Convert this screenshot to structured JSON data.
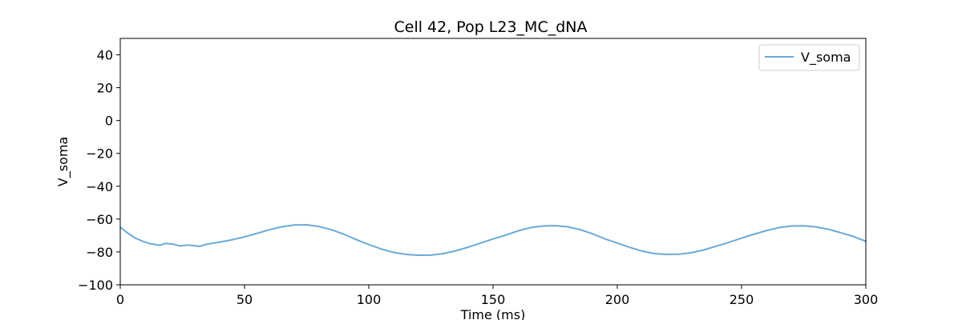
{
  "chart_data": {
    "type": "line",
    "title": "Cell 42, Pop L23_MC_dNA",
    "xlabel": "Time (ms)",
    "ylabel": "V_soma",
    "xlim": [
      0,
      300
    ],
    "ylim": [
      -100,
      50
    ],
    "xticks": [
      0,
      50,
      100,
      150,
      200,
      250,
      300
    ],
    "yticks": [
      -100,
      -80,
      -60,
      -40,
      -20,
      0,
      20,
      40
    ],
    "xtick_labels": [
      "0",
      "50",
      "100",
      "150",
      "200",
      "250",
      "300"
    ],
    "ytick_labels": [
      "−100",
      "−80",
      "−60",
      "−40",
      "−20",
      "0",
      "20",
      "40"
    ],
    "grid": false,
    "legend_position": "top-right",
    "series": [
      {
        "name": "V_soma",
        "color": "#6aaad8",
        "x": [
          0,
          3,
          6,
          9,
          12,
          15,
          16,
          18,
          21,
          24,
          27,
          30,
          32,
          35,
          40,
          45,
          50,
          55,
          60,
          65,
          70,
          75,
          80,
          85,
          90,
          95,
          100,
          105,
          110,
          115,
          120,
          125,
          130,
          135,
          140,
          145,
          150,
          155,
          160,
          165,
          170,
          175,
          180,
          185,
          190,
          195,
          200,
          205,
          210,
          215,
          220,
          225,
          230,
          235,
          240,
          245,
          250,
          255,
          260,
          265,
          270,
          275,
          280,
          285,
          290,
          295,
          300
        ],
        "y": [
          -65,
          -68.5,
          -71.5,
          -73.5,
          -75,
          -75.7,
          -76,
          -74.8,
          -75.2,
          -76.3,
          -75.8,
          -76.2,
          -76.6,
          -75.2,
          -74,
          -72.6,
          -70.8,
          -68.7,
          -66.5,
          -64.7,
          -63.6,
          -63.5,
          -64.5,
          -66.5,
          -69.2,
          -72.5,
          -75.5,
          -78.2,
          -80.3,
          -81.5,
          -82,
          -81.9,
          -81,
          -79.3,
          -77.1,
          -74.6,
          -72.1,
          -69.8,
          -67.2,
          -65.2,
          -64.2,
          -64,
          -64.7,
          -66.4,
          -68.9,
          -72,
          -74.6,
          -77.2,
          -79.5,
          -81,
          -81.5,
          -81.4,
          -80.4,
          -78.7,
          -76.4,
          -74.1,
          -71.6,
          -69.2,
          -67,
          -65.2,
          -64.2,
          -64.1,
          -64.8,
          -66.2,
          -68.3,
          -70.6,
          -73.5
        ]
      }
    ]
  }
}
